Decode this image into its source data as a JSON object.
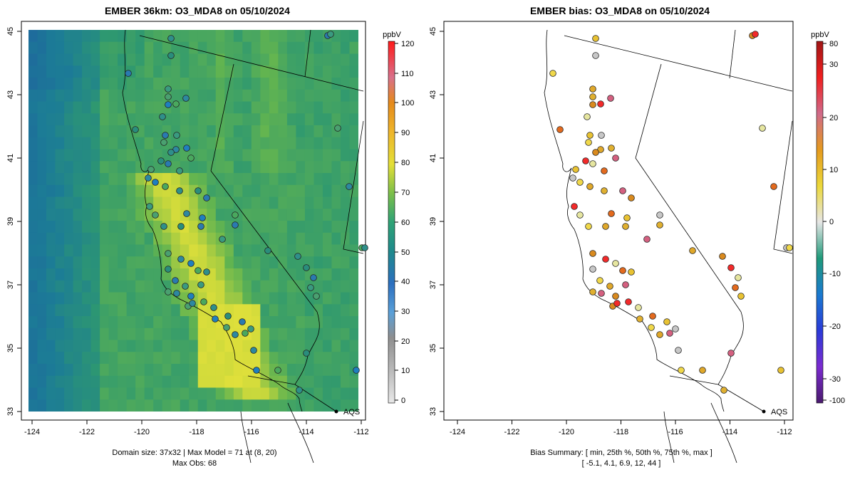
{
  "left_panel": {
    "title": "EMBER 36km: O3_MDA8 on 05/10/2024",
    "colorbar_unit": "ppbV",
    "colorbar_ticks": [
      "120",
      "110",
      "100",
      "90",
      "80",
      "70",
      "60",
      "50",
      "40",
      "30",
      "20",
      "10",
      "0"
    ],
    "x_ticks": [
      "-124",
      "-122",
      "-120",
      "-118",
      "-116",
      "-114",
      "-112"
    ],
    "y_ticks": [
      "33",
      "35",
      "37",
      "39",
      "41",
      "43",
      "45"
    ],
    "station_label": "AQS",
    "caption_line1": "Domain size: 37x32 | Max Model = 71 at (8, 20)",
    "caption_line2": "Max Obs: 68"
  },
  "right_panel": {
    "title": "EMBER bias: O3_MDA8 on 05/10/2024",
    "colorbar_unit": "ppbV",
    "colorbar_ticks": [
      "80",
      "30",
      "20",
      "10",
      "0",
      "-10",
      "-20",
      "-30",
      "-100"
    ],
    "x_ticks": [
      "-124",
      "-122",
      "-120",
      "-118",
      "-116",
      "-114",
      "-112"
    ],
    "y_ticks": [
      "33",
      "35",
      "37",
      "39",
      "41",
      "43",
      "45"
    ],
    "station_label": "AQS",
    "caption_line1": "Bias Summary: [ min, 25th %, 50th %, 75th %, max ]",
    "caption_line2": "[ -5.1,   4.1,   6.9,   12,   44 ]"
  },
  "colors": {
    "background": "#ffffff",
    "ozone_low": "#1f6fae",
    "ozone_mid": "#3aa27a",
    "ozone_high": "#e7e23a",
    "bias_high": "#c0392b",
    "bias_mid": "#f1c232",
    "bias_zero": "#dddddd"
  }
}
